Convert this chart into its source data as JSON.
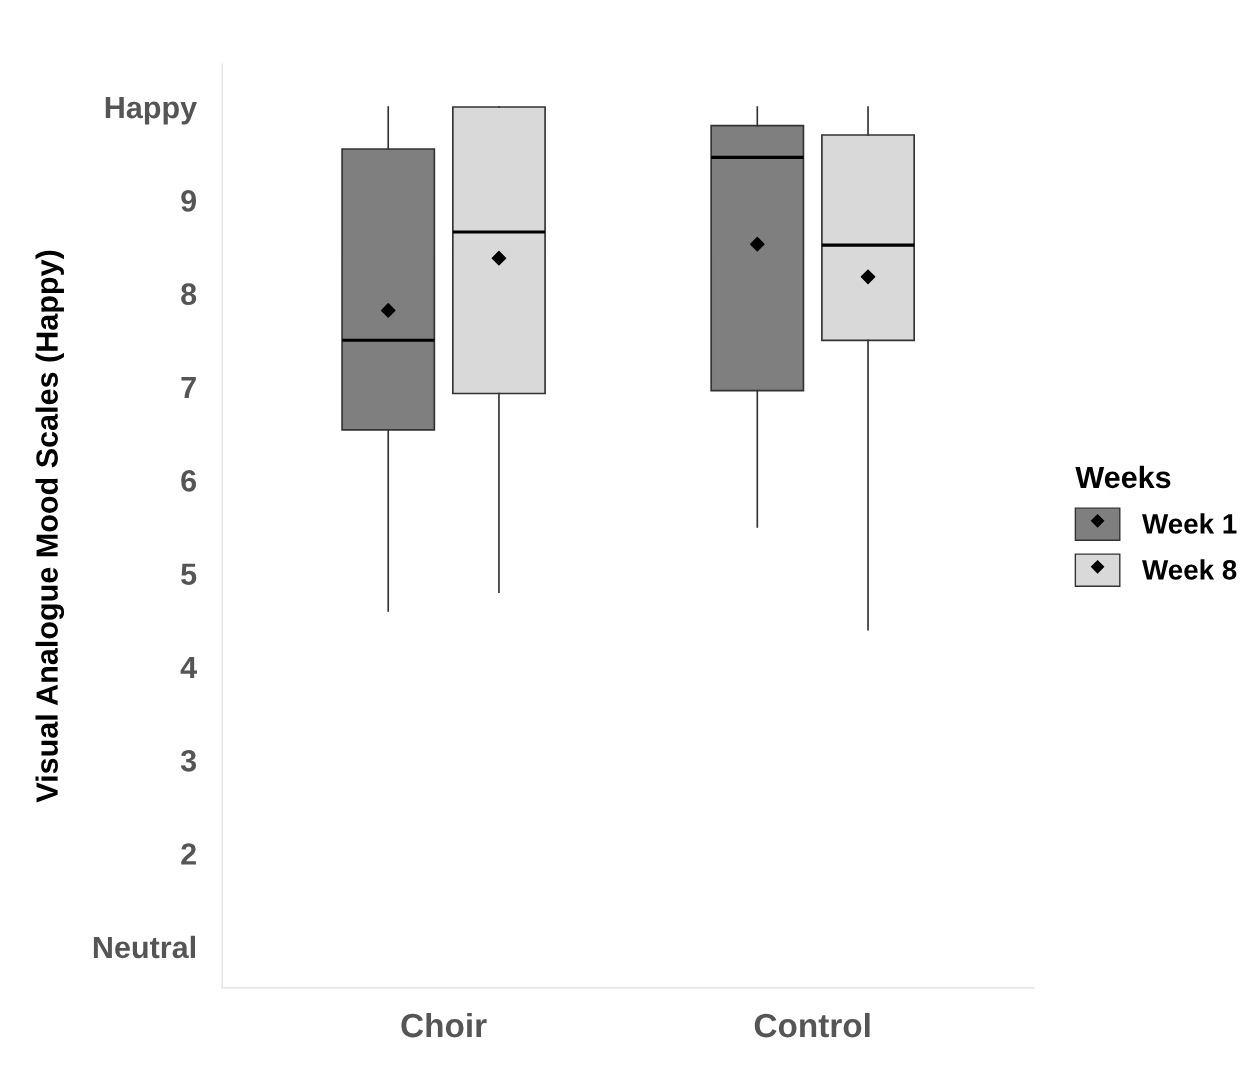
{
  "chart_data": {
    "type": "box",
    "ylabel": "Visual Analogue Mood Scales (Happy)",
    "legend_title": "Weeks",
    "categories": [
      "Choir",
      "Control"
    ],
    "series": [
      {
        "name": "Week 1",
        "color": "#7f7f7f",
        "boxes": [
          {
            "low": 4.6,
            "q1": 6.54,
            "median": 7.5,
            "q3": 9.55,
            "high": 10,
            "mean": 7.82
          },
          {
            "low": 5.5,
            "q1": 6.96,
            "median": 9.46,
            "q3": 9.8,
            "high": 10,
            "mean": 8.53
          }
        ]
      },
      {
        "name": "Week 8",
        "color": "#d9d9d9",
        "boxes": [
          {
            "low": 4.8,
            "q1": 6.93,
            "median": 8.66,
            "q3": 10,
            "high": 10,
            "mean": 8.38
          },
          {
            "low": 4.4,
            "q1": 7.5,
            "median": 8.52,
            "q3": 9.7,
            "high": 10,
            "mean": 8.18
          }
        ]
      }
    ],
    "ylim": [
      0.56,
      10.46
    ],
    "yticks": [
      {
        "value": 1,
        "label": "Neutral"
      },
      2,
      3,
      4,
      5,
      6,
      7,
      8,
      9,
      {
        "value": 10,
        "label": "Happy"
      }
    ],
    "grid": false,
    "legend": "right",
    "marker": "diamond"
  }
}
